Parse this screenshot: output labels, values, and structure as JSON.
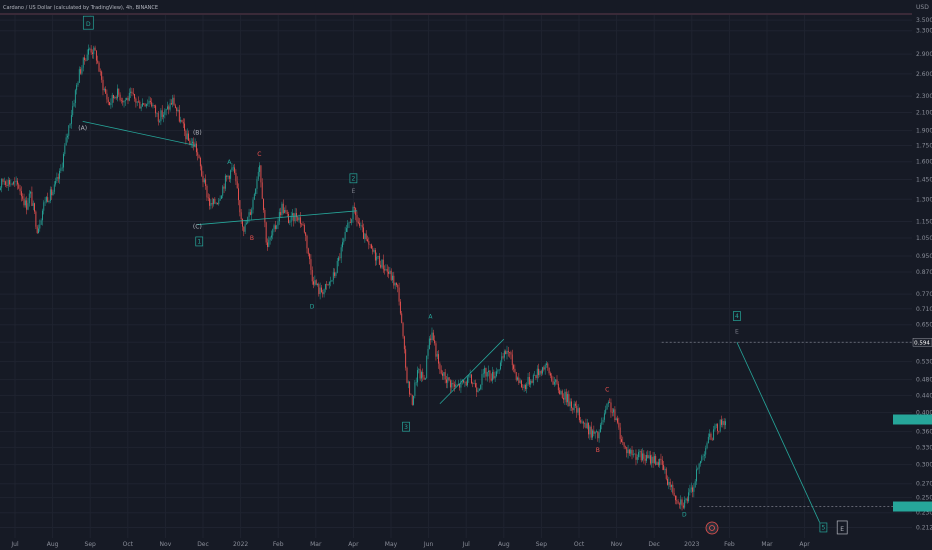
{
  "header": {
    "title": "Cardano / US Dollar (calculated by TradingView), 4h, BINANCE"
  },
  "colors": {
    "background": "#161a25",
    "up": "#26a69a",
    "down": "#ef5350",
    "wave_line": "#26a69a",
    "text": "#b2b5be",
    "current_price_bg": "#26a69a"
  },
  "chart_data": {
    "type": "candlestick",
    "y_scale": "log",
    "y_unit": "USD",
    "ylim": [
      0.2,
      3.6
    ],
    "y_ticks": [
      3.5,
      3.3,
      2.9,
      2.6,
      2.3,
      2.1,
      1.9,
      1.75,
      1.6,
      1.45,
      1.3,
      1.15,
      1.05,
      0.95,
      0.87,
      0.77,
      0.71,
      0.65,
      0.59,
      0.53,
      0.48,
      0.44,
      0.4,
      0.36,
      0.33,
      0.3,
      0.27,
      0.25,
      0.23,
      0.212
    ],
    "y_tick_labels": [
      "3.500",
      "3.300",
      "2.900",
      "2.600",
      "2.300",
      "2.100",
      "1.900",
      "1.750",
      "1.600",
      "1.450",
      "1.300",
      "1.150",
      "1.050",
      "0.950",
      "0.870",
      "0.770",
      "0.710",
      "0.650",
      "0.590",
      "0.530",
      "0.480",
      "0.440",
      "0.400",
      "0.360",
      "0.330",
      "0.300",
      "0.270",
      "0.250",
      "0.230",
      "0.212"
    ],
    "x_ticks": [
      "Jul",
      "Aug",
      "Sep",
      "Oct",
      "Nov",
      "Dec",
      "2022",
      "Feb",
      "Mar",
      "Apr",
      "May",
      "Jun",
      "Jul",
      "Aug",
      "Sep",
      "Oct",
      "Nov",
      "Dec",
      "2023",
      "Feb",
      "Mar",
      "Apr"
    ],
    "x_tick_months": [
      0,
      1,
      2,
      3,
      4,
      5,
      6,
      7,
      8,
      9,
      10,
      11,
      12,
      13,
      14,
      15,
      16,
      17,
      18,
      19,
      20,
      21
    ],
    "x_axis_start": "2021-07-01",
    "price_path": [
      [
        -0.6,
        1.3
      ],
      [
        -0.3,
        1.45
      ],
      [
        0.1,
        1.4
      ],
      [
        0.3,
        1.25
      ],
      [
        0.4,
        1.35
      ],
      [
        0.6,
        1.1
      ],
      [
        0.8,
        1.3
      ],
      [
        1.0,
        1.35
      ],
      [
        1.2,
        1.5
      ],
      [
        1.5,
        2.1
      ],
      [
        1.7,
        2.6
      ],
      [
        1.9,
        2.9
      ],
      [
        2.0,
        3.0
      ],
      [
        2.15,
        2.9
      ],
      [
        2.3,
        2.5
      ],
      [
        2.5,
        2.2
      ],
      [
        2.7,
        2.35
      ],
      [
        2.9,
        2.25
      ],
      [
        3.1,
        2.3
      ],
      [
        3.3,
        2.2
      ],
      [
        3.6,
        2.25
      ],
      [
        3.8,
        2.05
      ],
      [
        4.0,
        2.1
      ],
      [
        4.2,
        2.25
      ],
      [
        4.4,
        2.0
      ],
      [
        4.6,
        1.8
      ],
      [
        4.8,
        1.75
      ],
      [
        5.0,
        1.45
      ],
      [
        5.2,
        1.25
      ],
      [
        5.4,
        1.3
      ],
      [
        5.6,
        1.45
      ],
      [
        5.8,
        1.55
      ],
      [
        6.0,
        1.2
      ],
      [
        6.1,
        1.1
      ],
      [
        6.3,
        1.25
      ],
      [
        6.5,
        1.6
      ],
      [
        6.7,
        1.0
      ],
      [
        6.9,
        1.1
      ],
      [
        7.1,
        1.25
      ],
      [
        7.3,
        1.15
      ],
      [
        7.5,
        1.2
      ],
      [
        7.7,
        1.1
      ],
      [
        7.9,
        0.85
      ],
      [
        8.1,
        0.78
      ],
      [
        8.3,
        0.8
      ],
      [
        8.5,
        0.86
      ],
      [
        8.7,
        1.0
      ],
      [
        8.9,
        1.15
      ],
      [
        9.0,
        1.22
      ],
      [
        9.2,
        1.1
      ],
      [
        9.4,
        1.0
      ],
      [
        9.6,
        0.95
      ],
      [
        9.8,
        0.9
      ],
      [
        10.0,
        0.85
      ],
      [
        10.2,
        0.78
      ],
      [
        10.4,
        0.5
      ],
      [
        10.55,
        0.42
      ],
      [
        10.7,
        0.5
      ],
      [
        10.9,
        0.48
      ],
      [
        11.0,
        0.6
      ],
      [
        11.1,
        0.62
      ],
      [
        11.3,
        0.5
      ],
      [
        11.5,
        0.48
      ],
      [
        11.7,
        0.46
      ],
      [
        11.9,
        0.47
      ],
      [
        12.1,
        0.48
      ],
      [
        12.3,
        0.46
      ],
      [
        12.5,
        0.5
      ],
      [
        12.7,
        0.49
      ],
      [
        12.9,
        0.52
      ],
      [
        13.1,
        0.57
      ],
      [
        13.3,
        0.5
      ],
      [
        13.5,
        0.46
      ],
      [
        13.7,
        0.48
      ],
      [
        13.9,
        0.5
      ],
      [
        14.1,
        0.52
      ],
      [
        14.3,
        0.48
      ],
      [
        14.5,
        0.45
      ],
      [
        14.7,
        0.43
      ],
      [
        14.9,
        0.41
      ],
      [
        15.1,
        0.38
      ],
      [
        15.3,
        0.36
      ],
      [
        15.5,
        0.35
      ],
      [
        15.7,
        0.4
      ],
      [
        15.8,
        0.42
      ],
      [
        16.0,
        0.38
      ],
      [
        16.2,
        0.33
      ],
      [
        16.4,
        0.32
      ],
      [
        16.6,
        0.315
      ],
      [
        16.8,
        0.31
      ],
      [
        17.0,
        0.31
      ],
      [
        17.2,
        0.3
      ],
      [
        17.4,
        0.27
      ],
      [
        17.6,
        0.25
      ],
      [
        17.8,
        0.243
      ],
      [
        18.0,
        0.26
      ],
      [
        18.2,
        0.3
      ],
      [
        18.4,
        0.34
      ],
      [
        18.6,
        0.36
      ],
      [
        18.8,
        0.38
      ],
      [
        18.9,
        0.385
      ]
    ],
    "wave_lines": [
      [
        [
          1.8,
          2.0
        ],
        [
          4.8,
          1.75
        ]
      ],
      [
        [
          4.85,
          1.13
        ],
        [
          9.1,
          1.22
        ]
      ],
      [
        [
          11.3,
          0.42
        ],
        [
          13.0,
          0.6
        ]
      ],
      [
        [
          19.2,
          0.59
        ],
        [
          21.4,
          0.218
        ]
      ]
    ],
    "dashed_levels": [
      {
        "y": 0.59,
        "from": 17.2
      },
      {
        "y": 0.238,
        "from": 18.2
      }
    ],
    "annotations": [
      {
        "text": "D",
        "x": 1.95,
        "y": 3.45,
        "boxed": true,
        "size": "big",
        "color": "#26a69a"
      },
      {
        "text": "(A)",
        "x": 1.8,
        "y": 1.93,
        "color": "#b2b5be"
      },
      {
        "text": "(B)",
        "x": 4.85,
        "y": 1.88,
        "color": "#b2b5be"
      },
      {
        "text": "(C)",
        "x": 4.85,
        "y": 1.12,
        "color": "#b2b5be"
      },
      {
        "text": "1",
        "x": 4.9,
        "y": 1.03,
        "boxed": true,
        "color": "#26a69a"
      },
      {
        "text": "A",
        "x": 5.7,
        "y": 1.6,
        "color": "#26a69a"
      },
      {
        "text": "C",
        "x": 6.5,
        "y": 1.67,
        "color": "#ef5350"
      },
      {
        "text": "B",
        "x": 6.3,
        "y": 1.05,
        "color": "#ef5350"
      },
      {
        "text": "D",
        "x": 7.9,
        "y": 0.72,
        "color": "#26a69a"
      },
      {
        "text": "2",
        "x": 9.0,
        "y": 1.46,
        "boxed": true,
        "color": "#26a69a"
      },
      {
        "text": "E",
        "x": 9.0,
        "y": 1.36,
        "color": "#787b86"
      },
      {
        "text": "3",
        "x": 10.4,
        "y": 0.37,
        "boxed": true,
        "color": "#26a69a"
      },
      {
        "text": "A",
        "x": 11.05,
        "y": 0.68,
        "color": "#26a69a"
      },
      {
        "text": "C",
        "x": 15.75,
        "y": 0.455,
        "color": "#ef5350"
      },
      {
        "text": "B",
        "x": 15.5,
        "y": 0.325,
        "color": "#ef5350"
      },
      {
        "text": "D",
        "x": 17.8,
        "y": 0.228,
        "color": "#26a69a"
      },
      {
        "text": "4",
        "x": 19.2,
        "y": 0.682,
        "boxed": true,
        "color": "#26a69a"
      },
      {
        "text": "E",
        "x": 19.2,
        "y": 0.626,
        "color": "#787b86"
      },
      {
        "text": "5",
        "x": 21.5,
        "y": 0.212,
        "boxed": true,
        "color": "#26a69a"
      },
      {
        "text": "E",
        "x": 22.0,
        "y": 0.212,
        "boxed": true,
        "size": "big",
        "color": "#b2b5be"
      }
    ],
    "price_labels": [
      {
        "text": "0.594",
        "y": 0.59,
        "bg": "#1e222d",
        "color": "#ffffff"
      },
      {
        "text": "",
        "y": 0.385,
        "bg": "#26a69a",
        "color": "#ffffff"
      },
      {
        "text": "",
        "y": 0.238,
        "bg": "#26a69a",
        "color": "#ffffff"
      }
    ]
  }
}
